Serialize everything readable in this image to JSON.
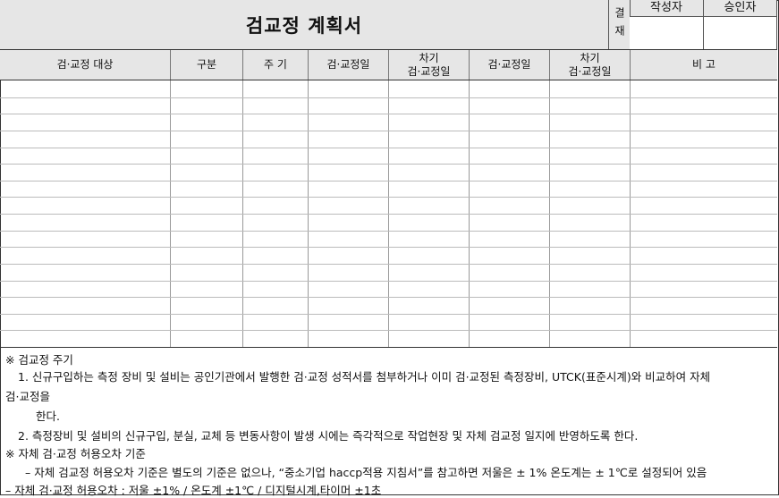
{
  "title": "검교정 계획서",
  "approval": {
    "label": "결재",
    "col1": "작성자",
    "col2": "승인자"
  },
  "columns": [
    "검·교정 대상",
    "구분",
    "주 기",
    "검·교정일",
    "차기\n검·교정일",
    "검·교정일",
    "차기\n검·교정일",
    "비 고"
  ],
  "empty_rows": 16,
  "notes": {
    "h1": "※ 검교정 주기",
    "l1": "1. 신규구입하는 측정 장비 및 설비는 공인기관에서 발행한 검·교정 성적서를 첨부하거나 이미 검·교정된 측정장비, UTCK(표준시계)와 비교하여 자체",
    "l1b": "검·교정을",
    "l1c": "한다.",
    "l2": "2. 측정장비 및 설비의 신규구입, 분실, 교체 등 변동사항이 발생 시에는 즉각적으로 작업현장 및 자체 검교정 일지에 반영하도록 한다.",
    "h2": "※ 자체 검·교정 허용오차 기준",
    "l3": "– 자체 검교정 허용오차 기준은 별도의 기준은 없으나, “중소기업 haccp적용 지침서”를 참고하면 저울은 ± 1% 온도계는 ± 1℃로 설정되어 있음",
    "l4": "– 자체 검·교정 허용오차 : 저울 ±1% / 온도계 ±1℃ / 디지털시계,타이머 ±1초"
  }
}
